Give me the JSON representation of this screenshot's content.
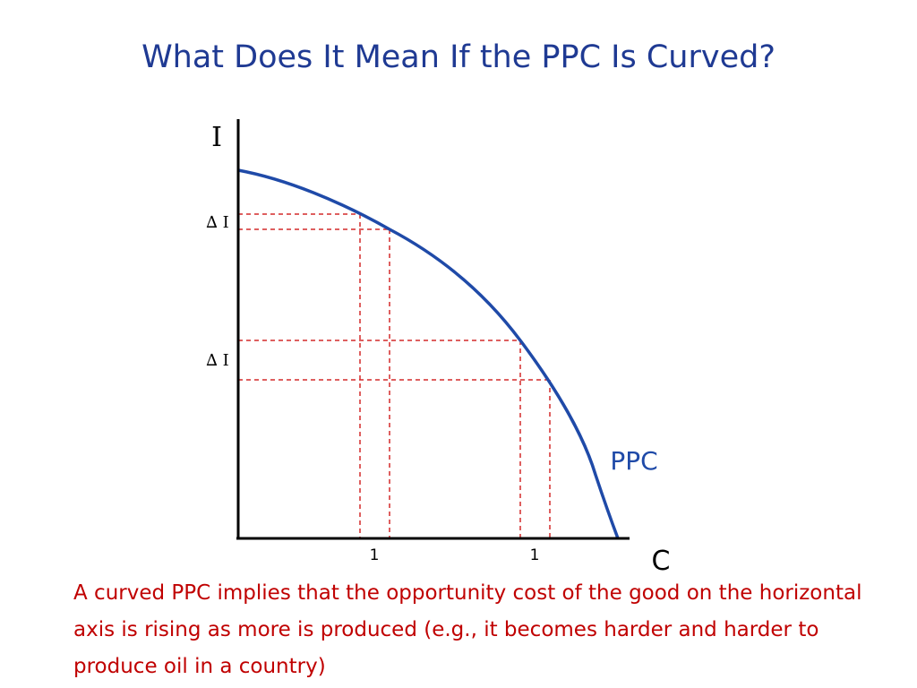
{
  "slide": {
    "title": "What Does It Mean If the PPC Is Curved?",
    "caption": "A curved PPC implies that the opportunity cost of the good on the horizontal axis is rising as more is produced (e.g., it becomes harder and harder to produce oil in a country)"
  },
  "diagram": {
    "y_axis_label": "I",
    "x_axis_label": "C",
    "curve_label": "PPC",
    "delta_labels": [
      "∆ I",
      "∆ I"
    ],
    "unit_labels": [
      "1",
      "1"
    ],
    "colors": {
      "curve": "#1f4aa8",
      "axes": "#000000",
      "guides": "#d42a2a",
      "title": "#1f3a93",
      "caption": "#c00000"
    }
  }
}
